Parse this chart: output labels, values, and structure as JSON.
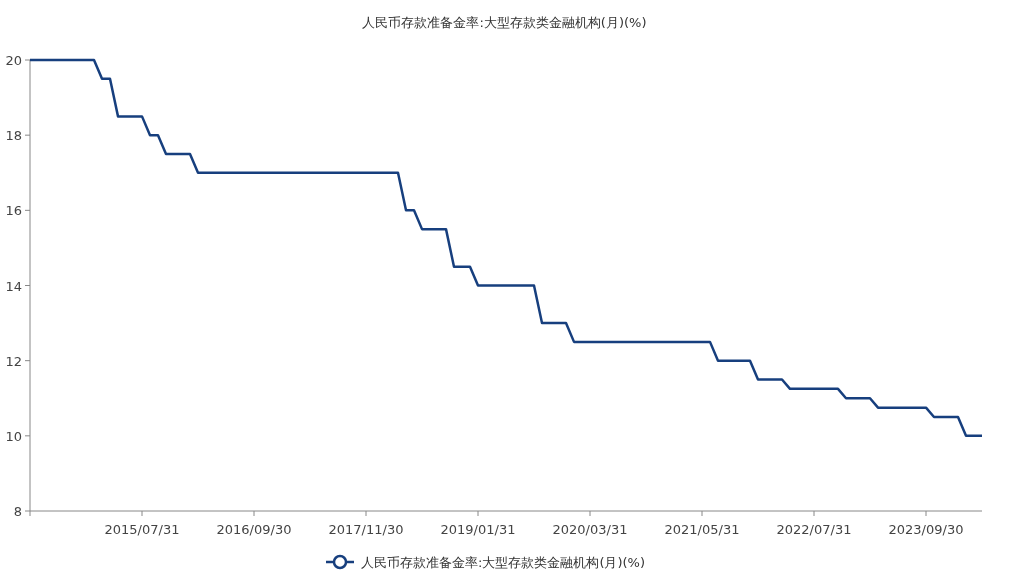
{
  "chart_data": {
    "type": "line",
    "title": "人民币存款准备金率:大型存款类金融机构(月)(%)",
    "categories": [
      null,
      null,
      null,
      null,
      null,
      null,
      null,
      null,
      null,
      null,
      null,
      null,
      null,
      null,
      "2015/07/31",
      null,
      null,
      null,
      null,
      null,
      null,
      null,
      null,
      null,
      null,
      null,
      null,
      null,
      "2016/09/30",
      null,
      null,
      null,
      null,
      null,
      null,
      null,
      null,
      null,
      null,
      null,
      null,
      null,
      "2017/11/30",
      null,
      null,
      null,
      null,
      null,
      null,
      null,
      null,
      null,
      null,
      null,
      null,
      null,
      "2019/01/31",
      null,
      null,
      null,
      null,
      null,
      null,
      null,
      null,
      null,
      null,
      null,
      null,
      null,
      "2020/03/31",
      null,
      null,
      null,
      null,
      null,
      null,
      null,
      null,
      null,
      null,
      null,
      null,
      null,
      "2021/05/31",
      null,
      null,
      null,
      null,
      null,
      null,
      null,
      null,
      null,
      null,
      null,
      null,
      null,
      "2022/07/31",
      null,
      null,
      null,
      null,
      null,
      null,
      null,
      null,
      null,
      null,
      null,
      null,
      null,
      "2023/09/30",
      null,
      null,
      null,
      null,
      null,
      null,
      null
    ],
    "series": [
      {
        "name": "人民币存款准备金率:大型存款类金融机构(月)(%)",
        "color": "#173f7e",
        "values": [
          20,
          20,
          20,
          20,
          20,
          20,
          20,
          20,
          20,
          19.5,
          19.5,
          18.5,
          18.5,
          18.5,
          18.5,
          18,
          18,
          17.5,
          17.5,
          17.5,
          17.5,
          17,
          17,
          17,
          17,
          17,
          17,
          17,
          17,
          17,
          17,
          17,
          17,
          17,
          17,
          17,
          17,
          17,
          17,
          17,
          17,
          17,
          17,
          17,
          17,
          17,
          17,
          16,
          16,
          15.5,
          15.5,
          15.5,
          15.5,
          14.5,
          14.5,
          14.5,
          14,
          14,
          14,
          14,
          14,
          14,
          14,
          14,
          13,
          13,
          13,
          13,
          12.5,
          12.5,
          12.5,
          12.5,
          12.5,
          12.5,
          12.5,
          12.5,
          12.5,
          12.5,
          12.5,
          12.5,
          12.5,
          12.5,
          12.5,
          12.5,
          12.5,
          12.5,
          12,
          12,
          12,
          12,
          12,
          11.5,
          11.5,
          11.5,
          11.5,
          11.25,
          11.25,
          11.25,
          11.25,
          11.25,
          11.25,
          11.25,
          11,
          11,
          11,
          11,
          10.75,
          10.75,
          10.75,
          10.75,
          10.75,
          10.75,
          10.75,
          10.5,
          10.5,
          10.5,
          10.5,
          10,
          10,
          10
        ]
      }
    ],
    "ylim": [
      8,
      20
    ],
    "yticks": [
      8,
      10,
      12,
      14,
      16,
      18,
      20
    ],
    "legend": "bottom"
  }
}
